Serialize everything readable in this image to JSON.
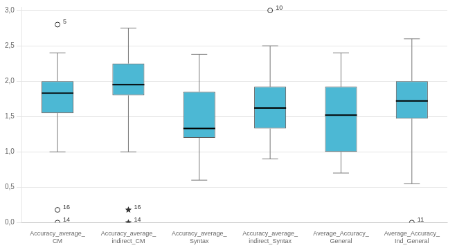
{
  "chart_data": {
    "type": "box",
    "categories": [
      "Accuracy_average_\nCM",
      "Accuracy_average_\nindirect_CM",
      "Accuracy_average_\nSyntax",
      "Accuracy_average_\nindirect_Syntax",
      "Average_Accuracy_\nGeneral",
      "Average_Accuracy_\nInd_General"
    ],
    "boxes": [
      {
        "whislo": 1.0,
        "q1": 1.55,
        "med": 1.83,
        "q3": 2.0,
        "whishi": 2.4,
        "fliers": [
          {
            "value": 2.8,
            "label": "5",
            "marker": "circle"
          },
          {
            "value": 0.18,
            "label": "16",
            "marker": "circle"
          },
          {
            "value": 0.0,
            "label": "14",
            "marker": "circle"
          }
        ]
      },
      {
        "whislo": 1.0,
        "q1": 1.8,
        "med": 1.95,
        "q3": 2.25,
        "whishi": 2.75,
        "fliers": [
          {
            "value": 0.18,
            "label": "16",
            "marker": "star"
          },
          {
            "value": 0.0,
            "label": "14",
            "marker": "star"
          }
        ]
      },
      {
        "whislo": 0.6,
        "q1": 1.2,
        "med": 1.33,
        "q3": 1.85,
        "whishi": 2.38,
        "fliers": []
      },
      {
        "whislo": 0.9,
        "q1": 1.33,
        "med": 1.62,
        "q3": 1.92,
        "whishi": 2.5,
        "fliers": [
          {
            "value": 3.0,
            "label": "10",
            "marker": "circle"
          }
        ]
      },
      {
        "whislo": 0.7,
        "q1": 1.0,
        "med": 1.52,
        "q3": 1.92,
        "whishi": 2.4,
        "fliers": []
      },
      {
        "whislo": 0.55,
        "q1": 1.47,
        "med": 1.72,
        "q3": 2.0,
        "whishi": 2.6,
        "fliers": [
          {
            "value": 0.0,
            "label": "11",
            "marker": "circle"
          }
        ]
      }
    ],
    "color": "#4cb8d4",
    "ylim": [
      0.0,
      3.05
    ],
    "yticks": [
      {
        "value": 0.0,
        "label": "0,0"
      },
      {
        "value": 0.5,
        "label": "0,5"
      },
      {
        "value": 1.0,
        "label": "1,0"
      },
      {
        "value": 1.5,
        "label": "1,5"
      },
      {
        "value": 2.0,
        "label": "2,0"
      },
      {
        "value": 2.5,
        "label": "2,5"
      },
      {
        "value": 3.0,
        "label": "3,0"
      }
    ],
    "grid": true
  }
}
